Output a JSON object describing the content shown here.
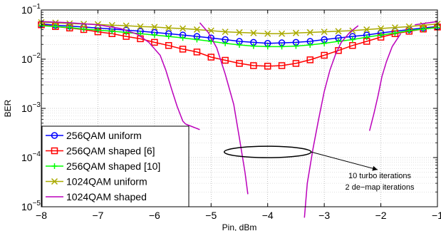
{
  "chart_data": {
    "type": "line",
    "title": "",
    "xlabel": "Pin, dBm",
    "ylabel": "BER",
    "xlim": [
      -8,
      -1
    ],
    "ylim": [
      1e-05,
      0.1
    ],
    "yscale": "log",
    "grid": true,
    "xticks": [
      "−8",
      "−7",
      "−6",
      "−5",
      "−4",
      "−3",
      "−2",
      "−1"
    ],
    "yticks": [
      {
        "value": 0.1,
        "base": "10",
        "exp": "−1"
      },
      {
        "value": 0.01,
        "base": "10",
        "exp": "−2"
      },
      {
        "value": 0.001,
        "base": "10",
        "exp": "−3"
      },
      {
        "value": 0.0001,
        "base": "10",
        "exp": "−4"
      },
      {
        "value": 1e-05,
        "base": "10",
        "exp": "−5"
      }
    ],
    "legend_position": "bottom-left",
    "series": [
      {
        "name": "256QAM uniform",
        "color": "#0000ff",
        "marker": "circle",
        "x": [
          -8,
          -7.75,
          -7.5,
          -7.25,
          -7,
          -6.75,
          -6.5,
          -6.25,
          -6,
          -5.75,
          -5.5,
          -5.25,
          -5,
          -4.75,
          -4.5,
          -4.25,
          -4,
          -3.75,
          -3.5,
          -3.25,
          -3,
          -2.75,
          -2.5,
          -2.25,
          -2,
          -1.75,
          -1.5,
          -1.25,
          -1
        ],
        "y": [
          0.052,
          0.049,
          0.047,
          0.045,
          0.043,
          0.041,
          0.039,
          0.037,
          0.035,
          0.033,
          0.031,
          0.029,
          0.027,
          0.025,
          0.023,
          0.022,
          0.021,
          0.0215,
          0.022,
          0.023,
          0.025,
          0.027,
          0.029,
          0.031,
          0.034,
          0.037,
          0.04,
          0.043,
          0.046
        ]
      },
      {
        "name": "256QAM shaped [6]",
        "color": "#ff0000",
        "marker": "square",
        "x": [
          -8,
          -7.75,
          -7.5,
          -7.25,
          -7,
          -6.75,
          -6.5,
          -6.25,
          -6,
          -5.75,
          -5.5,
          -5.25,
          -5,
          -4.75,
          -4.5,
          -4.25,
          -4,
          -3.75,
          -3.5,
          -3.25,
          -3,
          -2.75,
          -2.5,
          -2.25,
          -2,
          -1.75,
          -1.5,
          -1.25,
          -1
        ],
        "y": [
          0.05,
          0.046,
          0.043,
          0.04,
          0.036,
          0.033,
          0.029,
          0.026,
          0.022,
          0.019,
          0.016,
          0.014,
          0.011,
          0.0095,
          0.0082,
          0.0074,
          0.0072,
          0.0074,
          0.0082,
          0.0097,
          0.012,
          0.015,
          0.019,
          0.023,
          0.028,
          0.033,
          0.037,
          0.041,
          0.045
        ]
      },
      {
        "name": "256QAM shaped [10]",
        "color": "#00ff00",
        "marker": "plus",
        "x": [
          -8,
          -7.75,
          -7.5,
          -7.25,
          -7,
          -6.75,
          -6.5,
          -6.25,
          -6,
          -5.75,
          -5.5,
          -5.25,
          -5,
          -4.75,
          -4.5,
          -4.25,
          -4,
          -3.75,
          -3.5,
          -3.25,
          -3,
          -2.75,
          -2.5,
          -2.25,
          -2,
          -1.75,
          -1.5,
          -1.25,
          -1
        ],
        "y": [
          0.048,
          0.046,
          0.044,
          0.041,
          0.039,
          0.037,
          0.035,
          0.033,
          0.031,
          0.029,
          0.027,
          0.025,
          0.023,
          0.021,
          0.0195,
          0.0185,
          0.018,
          0.018,
          0.0185,
          0.0195,
          0.021,
          0.023,
          0.025,
          0.028,
          0.031,
          0.034,
          0.038,
          0.041,
          0.044
        ]
      },
      {
        "name": "1024QAM uniform",
        "color": "#aaaa00",
        "marker": "x",
        "x": [
          -8,
          -7.75,
          -7.5,
          -7.25,
          -7,
          -6.75,
          -6.5,
          -6.25,
          -6,
          -5.75,
          -5.5,
          -5.25,
          -5,
          -4.75,
          -4.5,
          -4.25,
          -4,
          -3.75,
          -3.5,
          -3.25,
          -3,
          -2.75,
          -2.5,
          -2.25,
          -2,
          -1.75,
          -1.5,
          -1.25,
          -1
        ],
        "y": [
          0.056,
          0.055,
          0.053,
          0.052,
          0.051,
          0.049,
          0.048,
          0.046,
          0.045,
          0.043,
          0.042,
          0.04,
          0.038,
          0.036,
          0.035,
          0.034,
          0.033,
          0.033,
          0.034,
          0.035,
          0.036,
          0.037,
          0.038,
          0.04,
          0.042,
          0.044,
          0.046,
          0.049,
          0.052
        ]
      },
      {
        "name": "1024QAM shaped",
        "color": "#bb00bb",
        "marker": "none",
        "segments": [
          {
            "x": [
              -8,
              -7.5,
              -7,
              -6.6,
              -6.3,
              -6.1,
              -5.9,
              -5.8,
              -5.7,
              -5.6,
              -5.5,
              -5.45
            ],
            "y": [
              0.058,
              0.055,
              0.05,
              0.042,
              0.032,
              0.022,
              0.012,
              0.006,
              0.0025,
              0.0011,
              0.00055,
              0.00048
            ]
          },
          {
            "x": [
              -5.45,
              -5.2
            ],
            "y": [
              0.00048,
              0.00037
            ]
          },
          {
            "x": [
              -5.2,
              -5.05,
              -4.9,
              -4.75,
              -4.6,
              -4.5,
              -4.4,
              -4.35
            ],
            "y": [
              0.055,
              0.035,
              0.017,
              0.005,
              0.0012,
              0.00025,
              5e-05,
              1.8e-05
            ]
          },
          {
            "x": [
              -3.35,
              -3.3,
              -3.2,
              -3.1,
              -3.0,
              -2.9,
              -2.8,
              -2.7,
              -2.55,
              -2.4
            ],
            "y": [
              6e-06,
              3e-05,
              0.00015,
              0.0006,
              0.0022,
              0.006,
              0.0125,
              0.022,
              0.035,
              0.048
            ]
          },
          {
            "x": [
              -2.2,
              -2.12,
              -2.05,
              -1.98,
              -1.9,
              -1.8,
              -1.65
            ],
            "y": [
              0.00035,
              0.0008,
              0.0018,
              0.0045,
              0.009,
              0.018,
              0.033
            ]
          },
          {
            "x": [
              -1.4,
              -1.15,
              -1
            ],
            "y": [
              0.05,
              0.055,
              0.058
            ]
          }
        ]
      }
    ],
    "annotation": {
      "lines": [
        "10 turbo iterations",
        "2 de−map iterations"
      ],
      "ellipse_center": {
        "x": -4.0,
        "y": 0.00013
      }
    }
  }
}
